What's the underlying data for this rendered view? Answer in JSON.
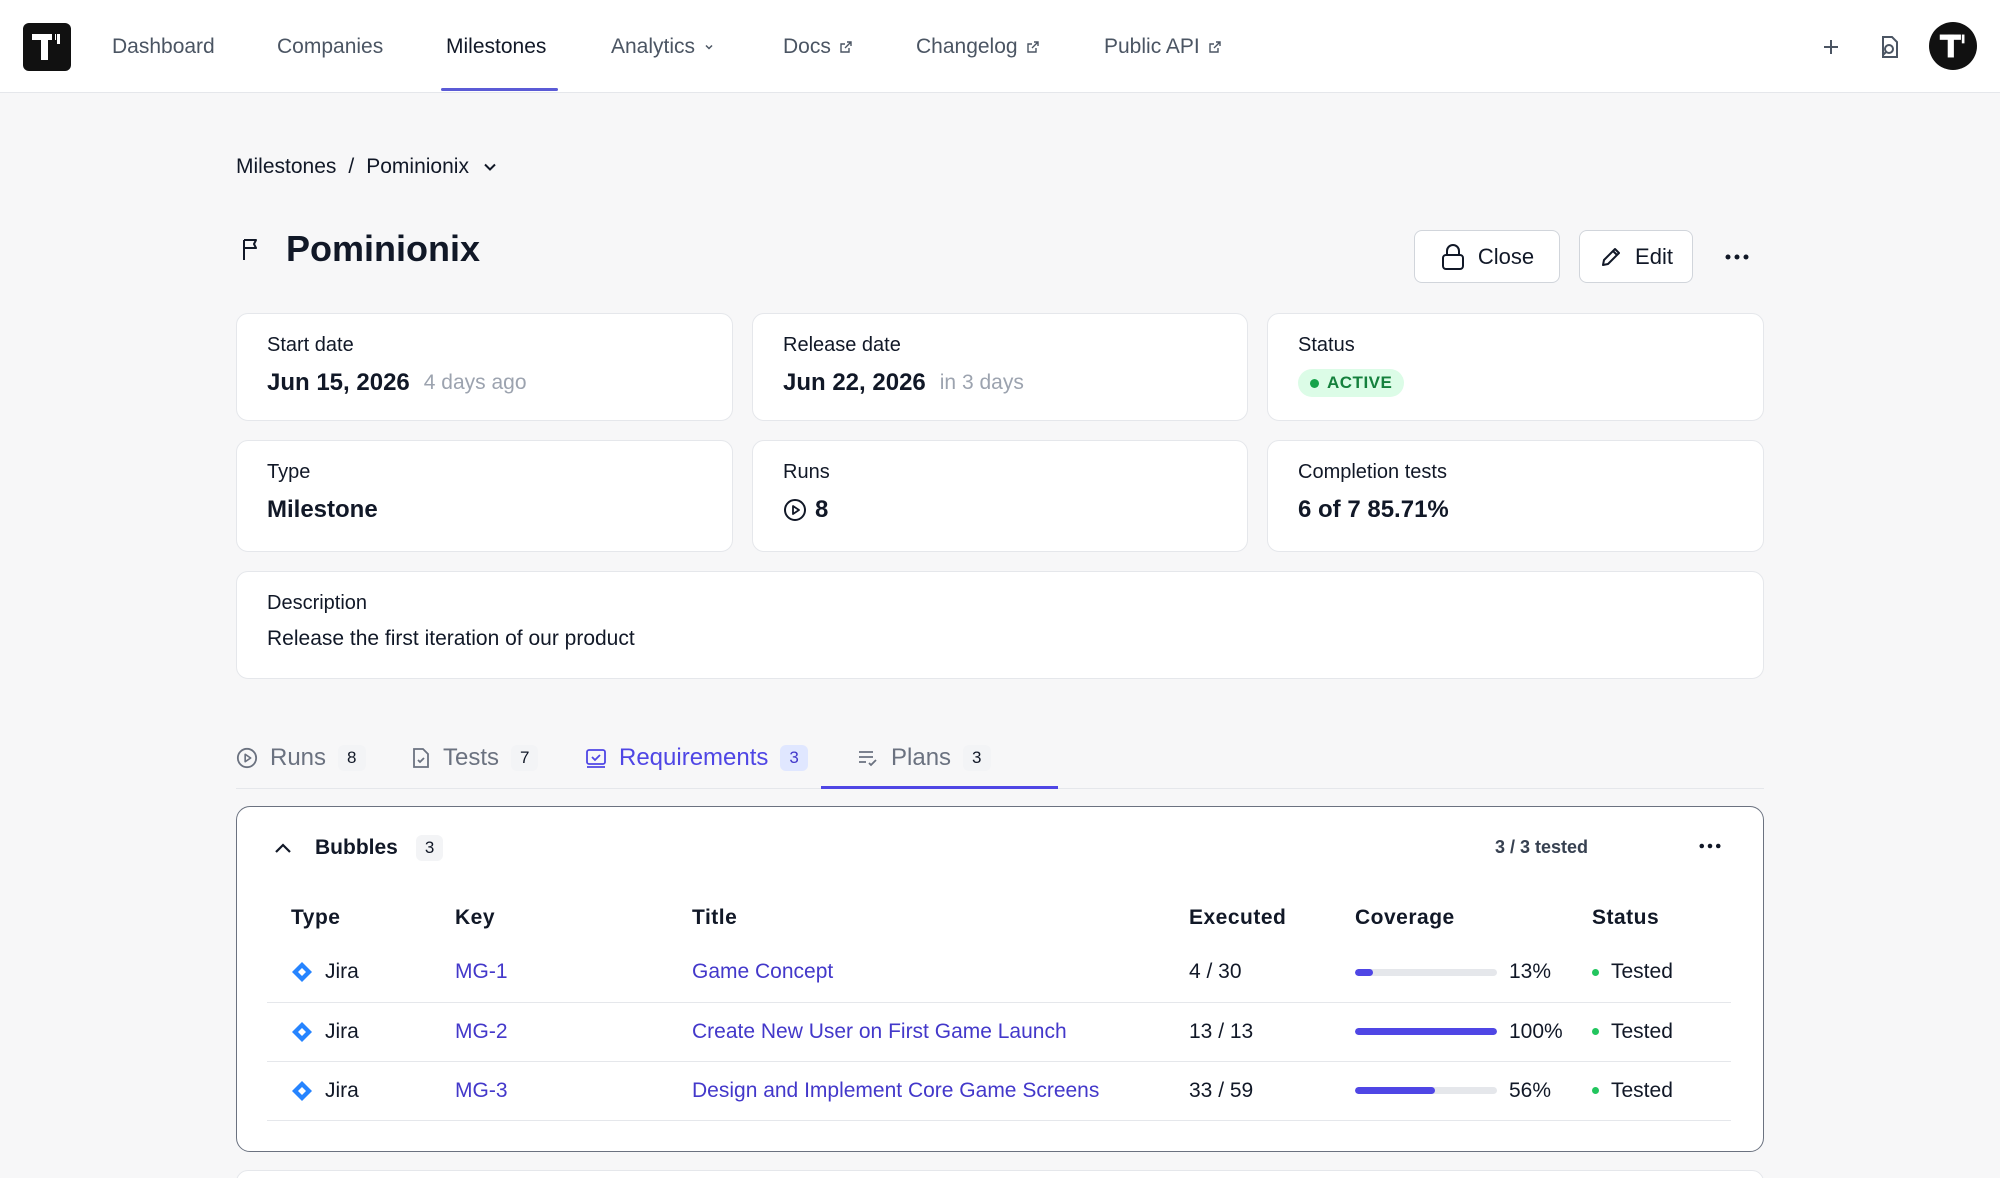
{
  "nav": {
    "items": [
      {
        "label": "Dashboard"
      },
      {
        "label": "Companies"
      },
      {
        "label": "Milestones"
      },
      {
        "label": "Analytics"
      },
      {
        "label": "Docs"
      },
      {
        "label": "Changelog"
      },
      {
        "label": "Public API"
      }
    ],
    "active": "Milestones"
  },
  "breadcrumb": {
    "root": "Milestones",
    "separator": "/",
    "current": "Pominionix"
  },
  "page": {
    "title": "Pominionix",
    "close_label": "Close",
    "edit_label": "Edit"
  },
  "cards": {
    "start": {
      "label": "Start date",
      "value": "Jun 15, 2026",
      "sub": "4 days ago"
    },
    "release": {
      "label": "Release date",
      "value": "Jun 22, 2026",
      "sub": "in 3 days"
    },
    "status": {
      "label": "Status",
      "value": "ACTIVE"
    },
    "type": {
      "label": "Type",
      "value": "Milestone"
    },
    "runs": {
      "label": "Runs",
      "value": "8"
    },
    "completion": {
      "label": "Completion tests",
      "value": "6 of 7 85.71%"
    },
    "description": {
      "label": "Description",
      "value": "Release the first iteration of our product"
    }
  },
  "tabs": [
    {
      "label": "Runs",
      "count": "8"
    },
    {
      "label": "Tests",
      "count": "7"
    },
    {
      "label": "Requirements",
      "count": "3"
    },
    {
      "label": "Plans",
      "count": "3"
    }
  ],
  "group": {
    "name": "Bubbles",
    "count": "3",
    "tested_summary": "3 / 3 tested",
    "columns": [
      "Type",
      "Key",
      "Title",
      "Executed",
      "Coverage",
      "Status"
    ],
    "rows": [
      {
        "type": "Jira",
        "key": "MG-1",
        "title": "Game Concept",
        "executed": "4 / 30",
        "coverage": "13%",
        "coverage_value": 0.13,
        "status": "Tested"
      },
      {
        "type": "Jira",
        "key": "MG-2",
        "title": "Create New User on First Game Launch",
        "executed": "13 / 13",
        "coverage": "100%",
        "coverage_value": 1.0,
        "status": "Tested"
      },
      {
        "type": "Jira",
        "key": "MG-3",
        "title": "Design and Implement Core Game Screens",
        "executed": "33 / 59",
        "coverage": "56%",
        "coverage_value": 0.56,
        "status": "Tested"
      }
    ]
  },
  "colors": {
    "accent": "#4f46e5",
    "status_green": "#22c55e",
    "jira_blue": "#2684ff"
  }
}
